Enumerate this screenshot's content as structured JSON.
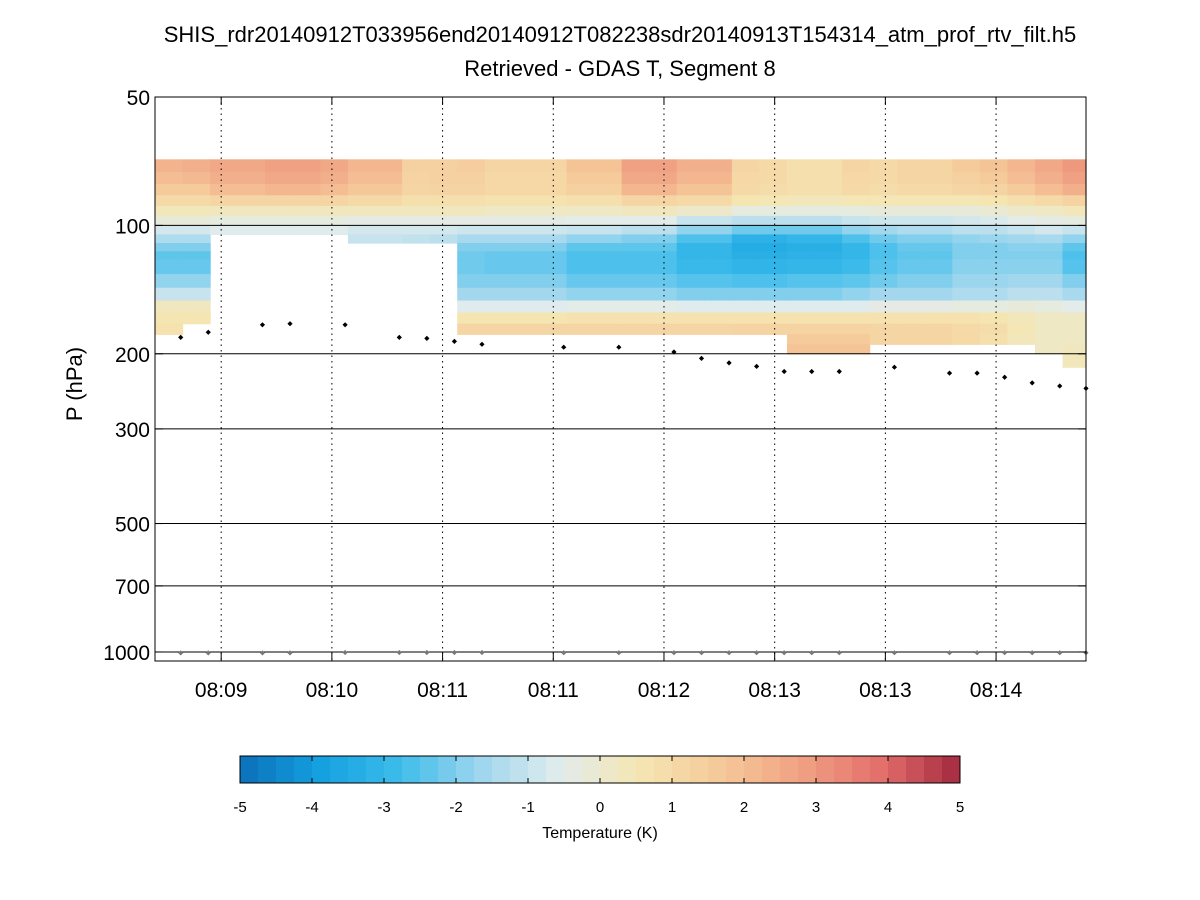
{
  "chart_data": {
    "type": "heatmap",
    "title": "SHIS_rdr20140912T033956end20140912T082238sdr20140913T154314_atm_prof_rtv_filt.h5",
    "subtitle": "Retrieved - GDAS T, Segment 8",
    "ylabel": "P (hPa)",
    "y_scale": "log",
    "y_reversed": true,
    "ylim": [
      50,
      1050
    ],
    "y_ticks": [
      50,
      100,
      200,
      300,
      500,
      700,
      1000
    ],
    "y_grid": "solid",
    "xlim": [
      0,
      1
    ],
    "x_tick_labels": [
      "08:09",
      "08:10",
      "08:11",
      "08:11",
      "08:12",
      "08:13",
      "08:13",
      "08:14"
    ],
    "x_ticks": [
      0.0711,
      0.19,
      0.3089,
      0.4278,
      0.5467,
      0.6656,
      0.7845,
      0.9034
    ],
    "x_grid": "dotted",
    "colorbar": {
      "label": "Temperature (K)",
      "range": [
        -5,
        5
      ],
      "ticks": [
        -5,
        -4,
        -3,
        -2,
        -1,
        0,
        1,
        2,
        3,
        4,
        5
      ],
      "colormap": [
        "#0b6fb8",
        "#14a0e0",
        "#3dbcea",
        "#9ed6ee",
        "#e2ecec",
        "#f5e6b2",
        "#f5c99a",
        "#f0a283",
        "#e46f6b",
        "#a3293f"
      ]
    },
    "levels_hPa": [
      70,
      75,
      80,
      85,
      90,
      95,
      100,
      105,
      110,
      115,
      120,
      130,
      140,
      150,
      160,
      170,
      180,
      190,
      200
    ],
    "columns": [
      {
        "x": 0.0,
        "base": 180,
        "v": [
          2.3,
          2.0,
          1.6,
          1.0,
          0.4,
          -0.2,
          -0.8,
          -1.4,
          -2.0,
          -2.4,
          -2.3,
          -1.8,
          -1.0,
          0.3,
          0.6,
          0.7
        ]
      },
      {
        "x": 0.0296,
        "base": 170,
        "v": [
          2.4,
          2.1,
          1.6,
          1.0,
          0.4,
          -0.2,
          -0.8,
          -1.4,
          -2.0,
          -2.4,
          -2.3,
          -1.8,
          -1.0,
          0.3,
          0.6
        ]
      },
      {
        "x": 0.0592,
        "base": 105,
        "v": [
          2.6,
          2.4,
          2.0,
          1.2,
          0.3,
          -0.3,
          -0.6
        ]
      },
      {
        "x": 0.0888,
        "base": 105,
        "v": [
          2.6,
          2.4,
          2.0,
          1.2,
          0.3,
          -0.3,
          -0.6
        ]
      },
      {
        "x": 0.1184,
        "base": 105,
        "v": [
          2.8,
          2.6,
          2.2,
          1.2,
          0.3,
          -0.3,
          -0.6
        ]
      },
      {
        "x": 0.148,
        "base": 105,
        "v": [
          2.8,
          2.6,
          2.2,
          1.2,
          0.3,
          -0.3,
          -0.6
        ]
      },
      {
        "x": 0.1776,
        "base": 105,
        "v": [
          2.6,
          2.4,
          2.0,
          1.2,
          0.3,
          -0.3,
          -0.6
        ]
      },
      {
        "x": 0.2072,
        "base": 110,
        "v": [
          2.2,
          2.0,
          1.7,
          1.0,
          0.3,
          -0.4,
          -0.8,
          -1.0
        ]
      },
      {
        "x": 0.2654,
        "base": 110,
        "v": [
          1.4,
          1.3,
          1.2,
          0.8,
          0.3,
          -0.4,
          -0.8,
          -1.1
        ]
      },
      {
        "x": 0.295,
        "base": 110,
        "v": [
          1.4,
          1.4,
          1.3,
          0.8,
          0.3,
          -0.4,
          -0.8,
          -1.2
        ]
      },
      {
        "x": 0.3246,
        "base": 180,
        "v": [
          1.5,
          1.4,
          1.3,
          0.8,
          0.3,
          -0.4,
          -0.9,
          -1.5,
          -2.0,
          -2.2,
          -2.2,
          -2.0,
          -1.6,
          -0.6,
          0.6,
          1.2
        ]
      },
      {
        "x": 0.3542,
        "base": 180,
        "v": [
          1.2,
          1.1,
          1.1,
          0.7,
          0.2,
          -0.4,
          -0.9,
          -1.5,
          -2.0,
          -2.3,
          -2.3,
          -2.0,
          -1.6,
          -0.6,
          0.6,
          1.2
        ]
      },
      {
        "x": 0.3838,
        "base": 180,
        "v": [
          1.2,
          1.1,
          1.1,
          0.7,
          0.2,
          -0.4,
          -0.9,
          -1.5,
          -2.0,
          -2.3,
          -2.3,
          -2.0,
          -1.6,
          -0.6,
          0.6,
          1.2
        ]
      },
      {
        "x": 0.442,
        "base": 180,
        "v": [
          1.8,
          1.6,
          1.4,
          0.8,
          0.2,
          -0.5,
          -1.0,
          -1.8,
          -2.4,
          -2.6,
          -2.6,
          -2.3,
          -1.8,
          -0.5,
          0.7,
          1.2
        ]
      },
      {
        "x": 0.4716,
        "base": 180,
        "v": [
          1.8,
          1.6,
          1.4,
          0.8,
          0.2,
          -0.5,
          -1.0,
          -1.8,
          -2.4,
          -2.6,
          -2.6,
          -2.3,
          -1.8,
          -0.5,
          0.7,
          1.2
        ]
      },
      {
        "x": 0.5012,
        "base": 180,
        "v": [
          2.8,
          2.6,
          2.2,
          1.2,
          0.3,
          -0.5,
          -1.2,
          -2.0,
          -2.4,
          -2.6,
          -2.6,
          -2.3,
          -1.8,
          -0.5,
          0.7,
          1.2
        ]
      },
      {
        "x": 0.5308,
        "base": 180,
        "v": [
          2.8,
          2.6,
          2.2,
          1.2,
          0.3,
          -0.5,
          -1.2,
          -2.0,
          -2.4,
          -2.6,
          -2.6,
          -2.3,
          -1.8,
          -0.5,
          0.7,
          1.2
        ]
      },
      {
        "x": 0.5604,
        "base": 180,
        "v": [
          2.4,
          2.2,
          1.8,
          1.0,
          0.1,
          -1.0,
          -1.8,
          -2.6,
          -3.0,
          -3.0,
          -2.9,
          -2.5,
          -2.0,
          -0.6,
          0.7,
          1.2
        ]
      },
      {
        "x": 0.59,
        "base": 180,
        "v": [
          2.4,
          2.2,
          1.8,
          1.0,
          0.1,
          -1.0,
          -1.8,
          -2.6,
          -3.0,
          -3.0,
          -2.9,
          -2.5,
          -2.0,
          -0.6,
          0.7,
          1.2
        ]
      },
      {
        "x": 0.6196,
        "base": 180,
        "v": [
          1.2,
          1.1,
          1.0,
          0.6,
          -0.3,
          -1.2,
          -2.2,
          -3.2,
          -3.4,
          -3.3,
          -3.1,
          -2.6,
          -2.0,
          -0.6,
          0.7,
          1.3
        ]
      },
      {
        "x": 0.6492,
        "base": 180,
        "v": [
          1.0,
          1.0,
          0.9,
          0.5,
          -0.3,
          -1.2,
          -2.2,
          -3.2,
          -3.4,
          -3.3,
          -3.1,
          -2.6,
          -2.0,
          -0.6,
          0.7,
          1.3
        ]
      },
      {
        "x": 0.6788,
        "base": 200,
        "v": [
          0.8,
          0.8,
          0.8,
          0.4,
          -0.3,
          -1.2,
          -2.2,
          -3.0,
          -3.3,
          -3.2,
          -3.0,
          -2.5,
          -2.0,
          -0.6,
          0.7,
          1.3,
          1.6,
          1.8
        ]
      },
      {
        "x": 0.7084,
        "base": 200,
        "v": [
          0.8,
          0.8,
          0.8,
          0.4,
          -0.3,
          -1.2,
          -2.2,
          -3.0,
          -3.3,
          -3.2,
          -3.0,
          -2.5,
          -2.0,
          -0.6,
          0.7,
          1.3,
          1.6,
          1.8
        ]
      },
      {
        "x": 0.738,
        "base": 200,
        "v": [
          1.2,
          1.1,
          1.0,
          0.5,
          -0.3,
          -1.0,
          -1.8,
          -2.6,
          -3.0,
          -3.0,
          -2.8,
          -2.4,
          -1.8,
          -0.6,
          0.7,
          1.3,
          1.6,
          1.8
        ]
      },
      {
        "x": 0.7676,
        "base": 190,
        "v": [
          1.0,
          1.0,
          0.9,
          0.5,
          -0.2,
          -0.9,
          -1.6,
          -2.2,
          -2.6,
          -2.6,
          -2.5,
          -2.2,
          -1.6,
          -0.4,
          0.7,
          1.2,
          1.2
        ]
      },
      {
        "x": 0.7972,
        "base": 190,
        "v": [
          1.2,
          1.2,
          1.0,
          0.5,
          -0.2,
          -0.9,
          -1.4,
          -2.0,
          -2.3,
          -2.4,
          -2.3,
          -2.0,
          -1.6,
          -0.4,
          0.7,
          1.2,
          1.2
        ]
      },
      {
        "x": 0.8268,
        "base": 190,
        "v": [
          1.2,
          1.2,
          1.0,
          0.5,
          -0.2,
          -0.9,
          -1.4,
          -2.0,
          -2.3,
          -2.4,
          -2.3,
          -2.0,
          -1.6,
          -0.4,
          0.7,
          1.2,
          1.2
        ]
      },
      {
        "x": 0.8564,
        "base": 190,
        "v": [
          1.6,
          1.4,
          1.2,
          0.5,
          -0.2,
          -0.8,
          -1.2,
          -1.8,
          -2.0,
          -2.0,
          -1.9,
          -1.7,
          -1.4,
          -0.3,
          0.7,
          1.0,
          1.0
        ]
      },
      {
        "x": 0.886,
        "base": 190,
        "v": [
          1.8,
          1.6,
          1.3,
          0.6,
          -0.1,
          -0.7,
          -1.2,
          -1.7,
          -2.0,
          -2.0,
          -1.9,
          -1.7,
          -1.4,
          -0.3,
          0.6,
          0.9,
          0.8
        ]
      },
      {
        "x": 0.9156,
        "base": 190,
        "v": [
          2.2,
          2.0,
          1.6,
          0.8,
          0.1,
          -0.5,
          -1.0,
          -1.6,
          -1.9,
          -2.0,
          -1.9,
          -1.6,
          -1.2,
          -0.2,
          0.4,
          0.5,
          0.4
        ]
      },
      {
        "x": 0.9452,
        "base": 200,
        "v": [
          2.6,
          2.4,
          2.0,
          1.0,
          0.2,
          -0.4,
          -0.8,
          -1.5,
          -1.9,
          -2.0,
          -1.9,
          -1.6,
          -1.2,
          -0.3,
          0.2,
          0.2,
          0.2,
          0.2
        ]
      },
      {
        "x": 0.9748,
        "end": 1.0,
        "base": 215,
        "v": [
          3.0,
          2.8,
          2.4,
          1.3,
          0.4,
          -0.3,
          -1.0,
          -1.8,
          -2.4,
          -2.6,
          -2.5,
          -2.0,
          -1.5,
          -0.5,
          0.2,
          0.2,
          0.2,
          0.3,
          0.4
        ]
      }
    ],
    "tropopause_hPa": [
      {
        "x": 0.0276,
        "p": 183
      },
      {
        "x": 0.0572,
        "p": 178
      },
      {
        "x": 0.1154,
        "p": 171
      },
      {
        "x": 0.145,
        "p": 170
      },
      {
        "x": 0.2042,
        "p": 171
      },
      {
        "x": 0.2624,
        "p": 183
      },
      {
        "x": 0.292,
        "p": 184
      },
      {
        "x": 0.3216,
        "p": 187
      },
      {
        "x": 0.3512,
        "p": 190
      },
      {
        "x": 0.439,
        "p": 193
      },
      {
        "x": 0.4982,
        "p": 193
      },
      {
        "x": 0.5574,
        "p": 198
      },
      {
        "x": 0.587,
        "p": 205
      },
      {
        "x": 0.6166,
        "p": 210
      },
      {
        "x": 0.6462,
        "p": 214
      },
      {
        "x": 0.6758,
        "p": 220
      },
      {
        "x": 0.7054,
        "p": 220
      },
      {
        "x": 0.735,
        "p": 220
      },
      {
        "x": 0.7942,
        "p": 215
      },
      {
        "x": 0.8534,
        "p": 222
      },
      {
        "x": 0.883,
        "p": 222
      },
      {
        "x": 0.9126,
        "p": 227
      },
      {
        "x": 0.9422,
        "p": 234
      },
      {
        "x": 0.9718,
        "p": 238
      },
      {
        "x": 1.0,
        "p": 241
      }
    ],
    "surface_hPa": [
      {
        "x": 0.0276,
        "p": 1005
      },
      {
        "x": 0.0572,
        "p": 1005
      },
      {
        "x": 0.1154,
        "p": 1005
      },
      {
        "x": 0.145,
        "p": 1005
      },
      {
        "x": 0.2042,
        "p": 1003
      },
      {
        "x": 0.2624,
        "p": 1003
      },
      {
        "x": 0.292,
        "p": 1003
      },
      {
        "x": 0.3216,
        "p": 1003
      },
      {
        "x": 0.3512,
        "p": 1003
      },
      {
        "x": 0.439,
        "p": 1004
      },
      {
        "x": 0.4982,
        "p": 1004
      },
      {
        "x": 0.5574,
        "p": 1004
      },
      {
        "x": 0.587,
        "p": 1004
      },
      {
        "x": 0.6166,
        "p": 1004
      },
      {
        "x": 0.6462,
        "p": 1004
      },
      {
        "x": 0.6758,
        "p": 1004
      },
      {
        "x": 0.7054,
        "p": 1004
      },
      {
        "x": 0.735,
        "p": 1004
      },
      {
        "x": 0.7942,
        "p": 1004
      },
      {
        "x": 0.8534,
        "p": 1004
      },
      {
        "x": 0.883,
        "p": 1004
      },
      {
        "x": 0.9126,
        "p": 1004
      },
      {
        "x": 0.9422,
        "p": 1004
      },
      {
        "x": 0.9718,
        "p": 1004
      },
      {
        "x": 1.0,
        "p": 1004
      }
    ]
  }
}
